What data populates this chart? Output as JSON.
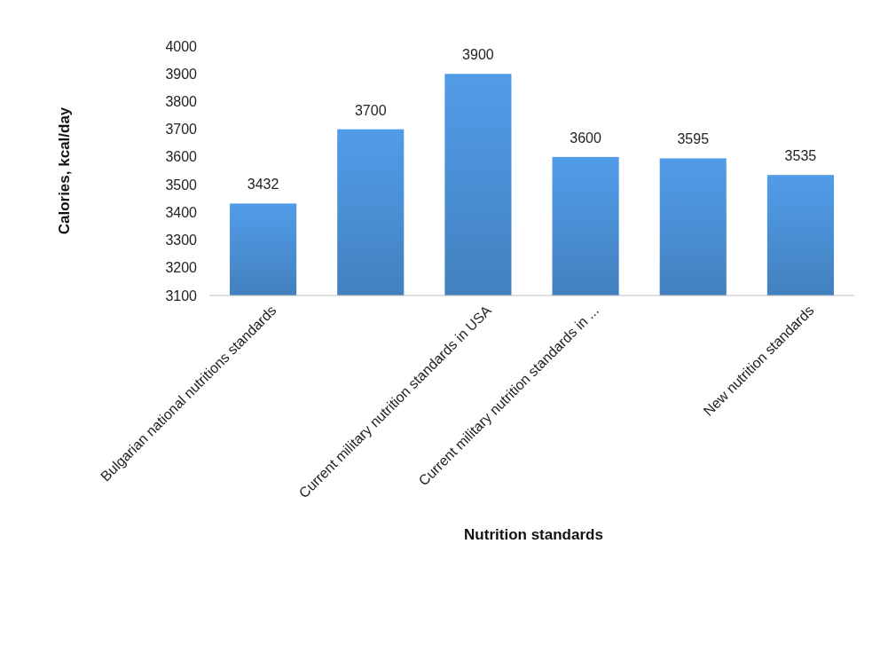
{
  "chart_data": {
    "type": "bar",
    "xlabel": "Nutrition standards",
    "ylabel": "Calories, kcal/day",
    "categories": [
      "Bulgarian national nutritions standards",
      null,
      "Current military nutrition standards in USA",
      "Current military nutrition standards in ...",
      null,
      "New nutrition standards"
    ],
    "values": [
      3432,
      3700,
      3900,
      3600,
      3595,
      3535
    ],
    "color": "#4a8fd4",
    "data_labels": true,
    "ylim": [
      3100,
      4000
    ],
    "yticks": [
      3100,
      3200,
      3300,
      3400,
      3500,
      3600,
      3700,
      3800,
      3900,
      4000
    ],
    "grid": false
  }
}
